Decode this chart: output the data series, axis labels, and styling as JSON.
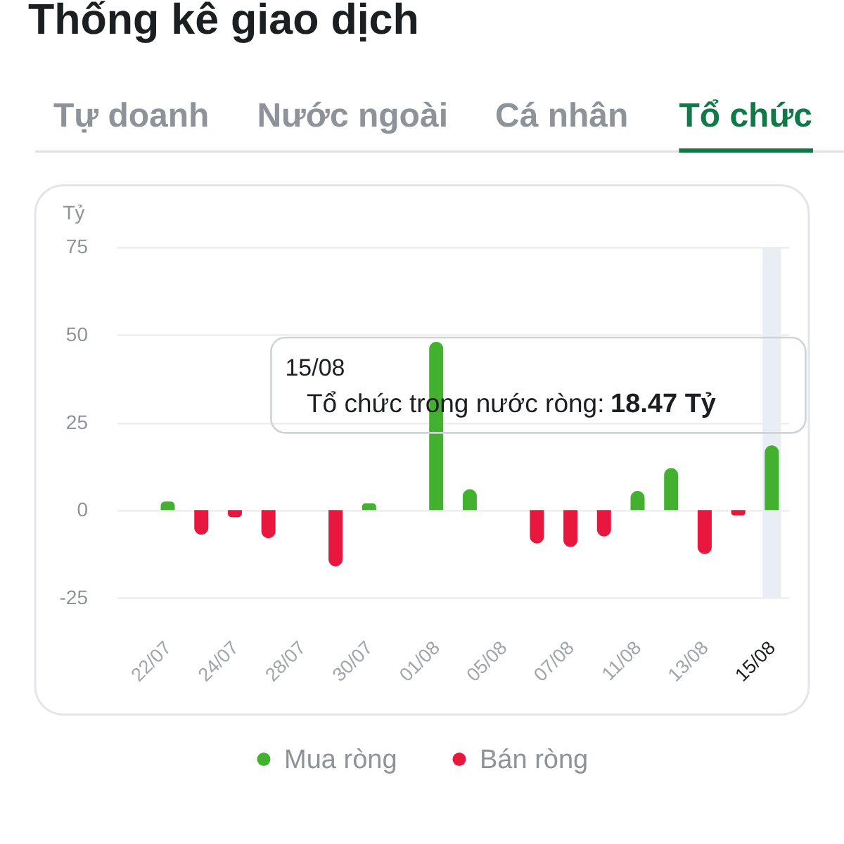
{
  "chart_data": {
    "type": "bar",
    "title": "Thống kê giao dịch",
    "ylabel": "Tỷ",
    "categories": [
      "22/07",
      null,
      "24/07",
      null,
      "28/07",
      null,
      "30/07",
      null,
      "01/08",
      null,
      "05/08",
      null,
      "07/08",
      null,
      "11/08",
      null,
      "13/08",
      null,
      "15/08"
    ],
    "series": [
      {
        "name": "Mua ròng",
        "color": "#44b030",
        "values": [
          2.5,
          null,
          null,
          null,
          null,
          null,
          2,
          null,
          48,
          6,
          null,
          null,
          null,
          null,
          5.5,
          12,
          null,
          null,
          18.47
        ]
      },
      {
        "name": "Bán ròng",
        "color": "#e8173e",
        "values": [
          null,
          -7,
          -2,
          -8,
          null,
          -16,
          null,
          null,
          null,
          null,
          null,
          -9.5,
          -10.5,
          -7.5,
          null,
          null,
          -12.5,
          -1.5,
          null
        ]
      }
    ],
    "ylim": [
      -25,
      75
    ],
    "yticks": [
      -25,
      0,
      25,
      50,
      75
    ],
    "grid": "y",
    "legend": "bottom",
    "bands": [
      {
        "axis": "x",
        "from": "15/08",
        "to": "15/08",
        "color": "#e9eef5"
      }
    ],
    "annotations": [
      "Tự doanh",
      "Nước ngoài",
      "Cá nhân",
      "Tổ chức",
      "15/08",
      "Tổ chức trong nước ròng:",
      "18.47 Tỷ"
    ]
  }
}
